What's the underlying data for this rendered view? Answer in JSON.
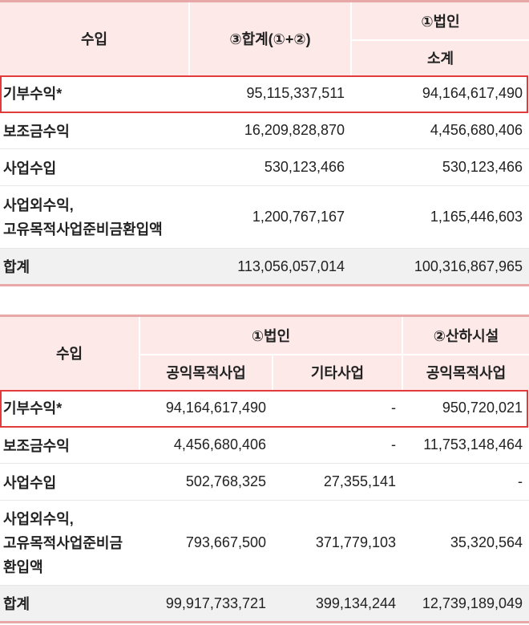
{
  "table1": {
    "header": {
      "col1": "수입",
      "col2": "③합계(①+②)",
      "col3_top": "①법인",
      "col3_sub": "소계"
    },
    "rows": [
      {
        "label": "기부수익*",
        "total": "95,115,337,511",
        "subtotal": "94,164,617,490"
      },
      {
        "label": "보조금수익",
        "total": "16,209,828,870",
        "subtotal": "4,456,680,406"
      },
      {
        "label": "사업수입",
        "total": "530,123,466",
        "subtotal": "530,123,466"
      },
      {
        "label_line1": "사업외수익,",
        "label_line2": "고유목적사업준비금환입액",
        "total": "1,200,767,167",
        "subtotal": "1,165,446,603"
      }
    ],
    "total_row": {
      "label": "합계",
      "total": "113,056,057,014",
      "subtotal": "100,316,867,965"
    }
  },
  "table2": {
    "header": {
      "col1": "수입",
      "group1": "①법인",
      "group2": "②산하시설",
      "sub1": "공익목적사업",
      "sub2": "기타사업",
      "sub3": "공익목적사업"
    },
    "rows": [
      {
        "label": "기부수익*",
        "c1": "94,164,617,490",
        "c2": "-",
        "c3": "950,720,021"
      },
      {
        "label": "보조금수익",
        "c1": "4,456,680,406",
        "c2": "-",
        "c3": "11,753,148,464"
      },
      {
        "label": "사업수입",
        "c1": "502,768,325",
        "c2": "27,355,141",
        "c3": "-"
      },
      {
        "label_line1": "사업외수익,",
        "label_line2": "고유목적사업준비금",
        "label_line3": "환입액",
        "c1": "793,667,500",
        "c2": "371,779,103",
        "c3": "35,320,564"
      }
    ],
    "total_row": {
      "label": "합계",
      "c1": "99,917,733,721",
      "c2": "399,134,244",
      "c3": "12,739,189,049"
    }
  },
  "colors": {
    "header_bg": "#fce9e8",
    "accent_border": "#e8a8a8",
    "highlight": "#e23b3b",
    "total_bg": "#f1f1f1"
  }
}
